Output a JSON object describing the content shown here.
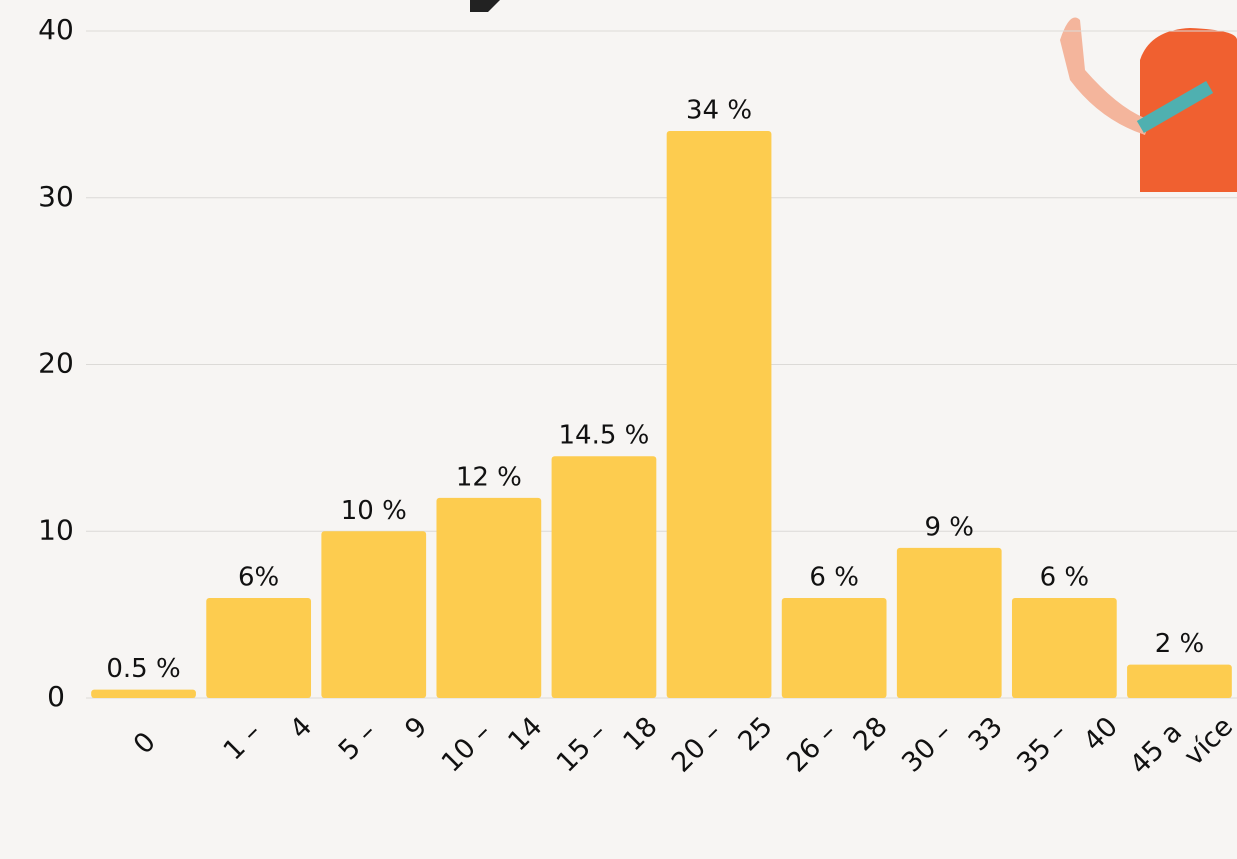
{
  "chart_data": {
    "type": "bar",
    "categories": [
      "0",
      "1 – 4",
      "5 – 9",
      "10 – 14",
      "15 – 18",
      "20 – 25",
      "26 – 28",
      "30 – 33",
      "35 – 40",
      "45 a více"
    ],
    "values": [
      0.5,
      6,
      10,
      12,
      14.5,
      34,
      6,
      9,
      6,
      2
    ],
    "value_labels": [
      "0.5 %",
      "6%",
      "10 %",
      "12 %",
      "14.5 %",
      "34 %",
      "6 %",
      "9 %",
      "6 %",
      "2 %"
    ],
    "color": "#fdcc4f",
    "ylim": [
      0,
      40
    ],
    "yticks": [
      0,
      10,
      20,
      30,
      40
    ],
    "grid": true
  }
}
